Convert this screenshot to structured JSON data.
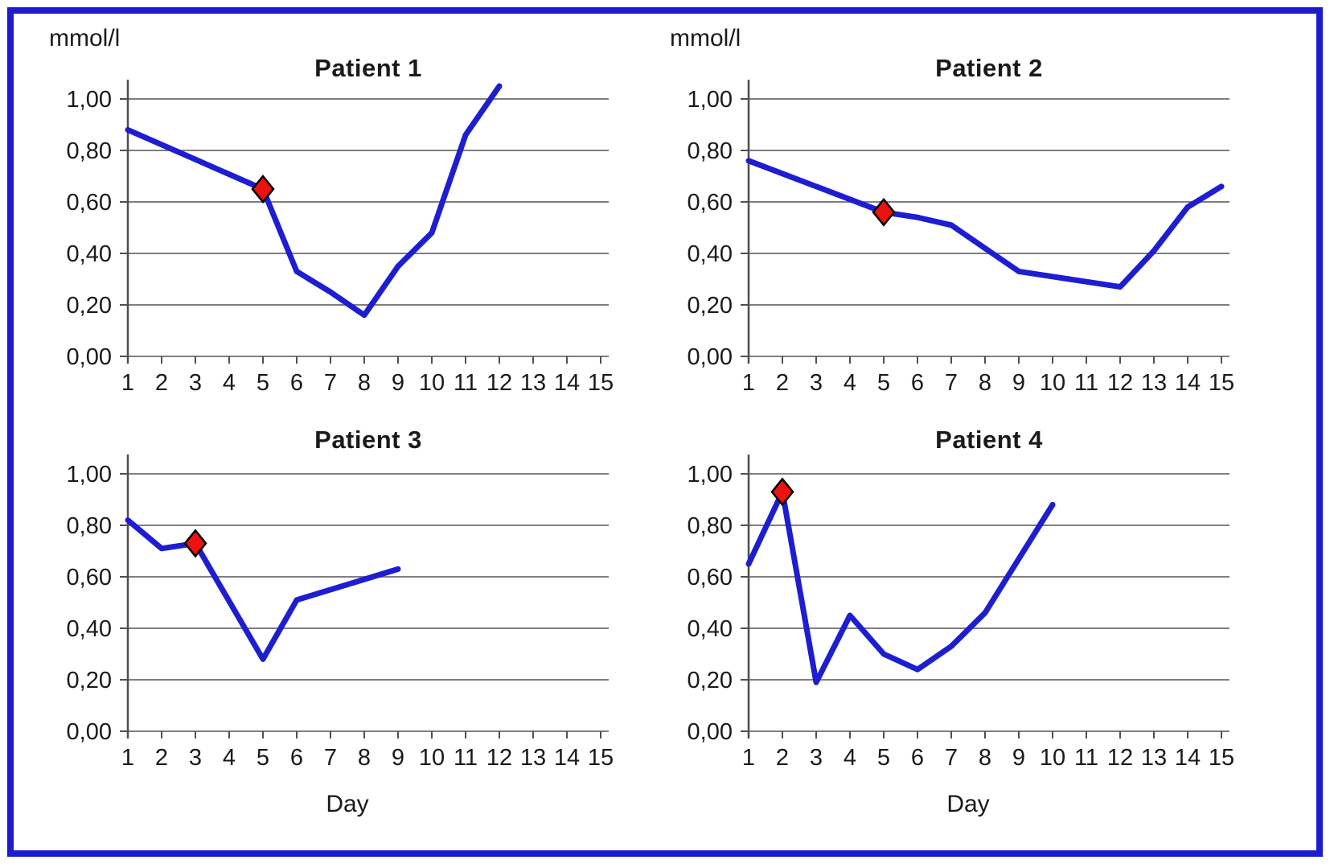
{
  "frame": {
    "border_color": "#1b1bd0",
    "background": "#ffffff"
  },
  "colors": {
    "line": "#1d1dd1",
    "marker_fill": "#ee1111",
    "marker_stroke": "#000000",
    "gridline": "#7f7f7f",
    "axis": "#4f4f4f",
    "text": "#1a1a1a"
  },
  "chart_data": [
    {
      "type": "line",
      "title": "Patient 1",
      "ylabel": "mmol/l",
      "xlabel": "",
      "xlim": [
        1,
        15
      ],
      "ylim": [
        0,
        1
      ],
      "grid": true,
      "x_ticks": [
        "1",
        "2",
        "3",
        "4",
        "5",
        "6",
        "7",
        "8",
        "9",
        "10",
        "11",
        "12",
        "13",
        "14",
        "15"
      ],
      "y_ticks": [
        {
          "label": "1,00",
          "value": 1.0
        },
        {
          "label": "0,80",
          "value": 0.8
        },
        {
          "label": "0,60",
          "value": 0.6
        },
        {
          "label": "0,40",
          "value": 0.4
        },
        {
          "label": "0,20",
          "value": 0.2
        },
        {
          "label": "0,00",
          "value": 0.0
        }
      ],
      "points": [
        [
          1,
          0.88
        ],
        [
          5,
          0.65
        ],
        [
          6,
          0.33
        ],
        [
          7,
          0.25
        ],
        [
          8,
          0.16
        ],
        [
          9,
          0.35
        ],
        [
          10,
          0.48
        ],
        [
          11,
          0.86
        ],
        [
          12,
          1.05
        ]
      ],
      "marker": {
        "x": 5,
        "y": 0.65,
        "shape": "diamond"
      }
    },
    {
      "type": "line",
      "title": "Patient 2",
      "ylabel": "mmol/l",
      "xlabel": "",
      "xlim": [
        1,
        15
      ],
      "ylim": [
        0,
        1
      ],
      "grid": true,
      "x_ticks": [
        "1",
        "2",
        "3",
        "4",
        "5",
        "6",
        "7",
        "8",
        "9",
        "10",
        "11",
        "12",
        "13",
        "14",
        "15"
      ],
      "y_ticks": [
        {
          "label": "1,00",
          "value": 1.0
        },
        {
          "label": "0,80",
          "value": 0.8
        },
        {
          "label": "0,60",
          "value": 0.6
        },
        {
          "label": "0,40",
          "value": 0.4
        },
        {
          "label": "0,20",
          "value": 0.2
        },
        {
          "label": "0,00",
          "value": 0.0
        }
      ],
      "points": [
        [
          1,
          0.76
        ],
        [
          5,
          0.56
        ],
        [
          6,
          0.54
        ],
        [
          7,
          0.51
        ],
        [
          8,
          0.42
        ],
        [
          9,
          0.33
        ],
        [
          10,
          0.31
        ],
        [
          11,
          0.29
        ],
        [
          12,
          0.27
        ],
        [
          13,
          0.41
        ],
        [
          14,
          0.58
        ],
        [
          15,
          0.66
        ]
      ],
      "marker": {
        "x": 5,
        "y": 0.56,
        "shape": "diamond"
      }
    },
    {
      "type": "line",
      "title": "Patient 3",
      "ylabel": "",
      "xlabel": "Day",
      "xlim": [
        1,
        15
      ],
      "ylim": [
        0,
        1
      ],
      "grid": true,
      "x_ticks": [
        "1",
        "2",
        "3",
        "4",
        "5",
        "6",
        "7",
        "8",
        "9",
        "10",
        "11",
        "12",
        "13",
        "14",
        "15"
      ],
      "y_ticks": [
        {
          "label": "1,00",
          "value": 1.0
        },
        {
          "label": "0,80",
          "value": 0.8
        },
        {
          "label": "0,60",
          "value": 0.6
        },
        {
          "label": "0,40",
          "value": 0.4
        },
        {
          "label": "0,20",
          "value": 0.2
        },
        {
          "label": "0,00",
          "value": 0.0
        }
      ],
      "points": [
        [
          1,
          0.82
        ],
        [
          2,
          0.71
        ],
        [
          3,
          0.73
        ],
        [
          5,
          0.28
        ],
        [
          6,
          0.51
        ],
        [
          9,
          0.63
        ]
      ],
      "marker": {
        "x": 3,
        "y": 0.73,
        "shape": "diamond"
      }
    },
    {
      "type": "line",
      "title": "Patient 4",
      "ylabel": "",
      "xlabel": "Day",
      "xlim": [
        1,
        15
      ],
      "ylim": [
        0,
        1
      ],
      "grid": true,
      "x_ticks": [
        "1",
        "2",
        "3",
        "4",
        "5",
        "6",
        "7",
        "8",
        "9",
        "10",
        "11",
        "12",
        "13",
        "14",
        "15"
      ],
      "y_ticks": [
        {
          "label": "1,00",
          "value": 1.0
        },
        {
          "label": "0,80",
          "value": 0.8
        },
        {
          "label": "0,60",
          "value": 0.6
        },
        {
          "label": "0,40",
          "value": 0.4
        },
        {
          "label": "0,20",
          "value": 0.2
        },
        {
          "label": "0,00",
          "value": 0.0
        }
      ],
      "points": [
        [
          1,
          0.65
        ],
        [
          2,
          0.93
        ],
        [
          3,
          0.19
        ],
        [
          4,
          0.45
        ],
        [
          5,
          0.3
        ],
        [
          6,
          0.24
        ],
        [
          7,
          0.33
        ],
        [
          8,
          0.46
        ],
        [
          10,
          0.88
        ]
      ],
      "marker": {
        "x": 2,
        "y": 0.93,
        "shape": "diamond"
      }
    }
  ]
}
